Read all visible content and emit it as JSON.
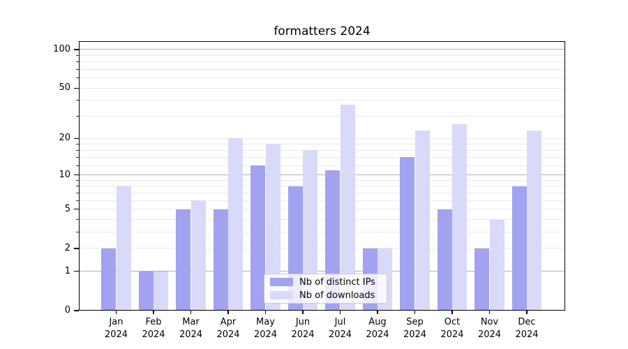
{
  "figure": {
    "title": "formatters 2024"
  },
  "chart_data": {
    "type": "bar",
    "title": "formatters 2024",
    "categories": [
      "Jan",
      "Feb",
      "Mar",
      "Apr",
      "May",
      "Jun",
      "Jul",
      "Aug",
      "Sep",
      "Oct",
      "Nov",
      "Dec"
    ],
    "category_year": "2024",
    "series": [
      {
        "name": "Nb of distinct IPs",
        "color": "#a2a2f0",
        "values": [
          2,
          1,
          5,
          5,
          12,
          8,
          11,
          2,
          14,
          5,
          2,
          8
        ]
      },
      {
        "name": "Nb of downloads",
        "color": "#d9d9fa",
        "values": [
          8,
          1,
          6,
          20,
          18,
          16,
          37,
          2,
          23,
          26,
          4,
          23
        ]
      }
    ],
    "yscale": "log1p",
    "ylim": [
      0,
      116
    ],
    "y_ticks": [
      0,
      1,
      2,
      5,
      10,
      20,
      50,
      100
    ],
    "y_tick_labels": [
      "0",
      "1",
      "2",
      "5",
      "10",
      "20",
      "50",
      "100"
    ],
    "major_gridlines": [
      1,
      10,
      100
    ],
    "minor_gridlines": [
      2,
      3,
      4,
      5,
      6,
      7,
      8,
      9,
      12,
      14,
      16,
      18,
      20,
      30,
      40,
      50,
      60,
      70,
      80,
      90
    ],
    "grid": true,
    "legend_position": "lower center",
    "colors": {
      "major_grid": "#b0b0b0",
      "minor_grid": "#e9e9e9",
      "spine": "#000000",
      "background": "#ffffff"
    }
  }
}
